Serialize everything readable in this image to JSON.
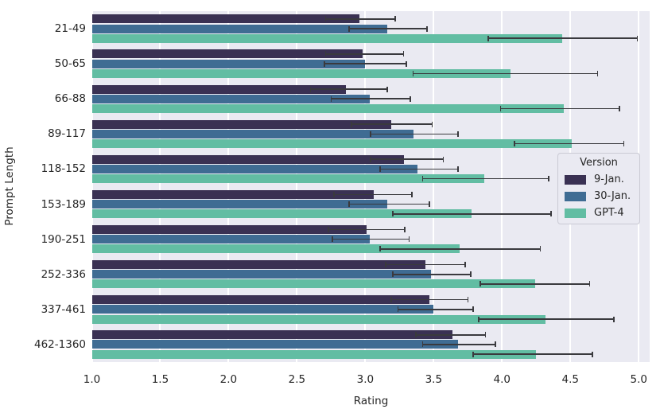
{
  "figure": {
    "background": "#ffffff",
    "plot_background": "#eaeaf2",
    "grid_color": "#ffffff",
    "error_bar_color": "#3a3a3e",
    "text_color": "#262626"
  },
  "chart_data": {
    "type": "bar",
    "orientation": "horizontal",
    "title": "",
    "xlabel": "Rating",
    "ylabel": "Prompt Length",
    "xlim": [
      1.0,
      5.08
    ],
    "xticks": [
      1.0,
      1.5,
      2.0,
      2.5,
      3.0,
      3.5,
      4.0,
      4.5,
      5.0
    ],
    "grid": true,
    "legend": {
      "title": "Version",
      "position": "center right"
    },
    "categories": [
      "21-49",
      "50-65",
      "66-88",
      "89-117",
      "118-152",
      "153-189",
      "190-251",
      "252-336",
      "337-461",
      "462-1360"
    ],
    "series": [
      {
        "name": "9-Jan.",
        "color": "#3a3153",
        "values": [
          2.96,
          2.98,
          2.86,
          3.19,
          3.28,
          3.06,
          3.01,
          3.44,
          3.47,
          3.64
        ],
        "err_low": [
          2.71,
          2.71,
          2.6,
          2.9,
          3.04,
          2.77,
          2.73,
          3.15,
          3.19,
          3.37
        ],
        "err_high": [
          3.22,
          3.28,
          3.16,
          3.49,
          3.57,
          3.34,
          3.29,
          3.73,
          3.75,
          3.88
        ]
      },
      {
        "name": "30-Jan.",
        "color": "#3f6c93",
        "values": [
          3.16,
          3.0,
          3.03,
          3.35,
          3.38,
          3.16,
          3.03,
          3.48,
          3.5,
          3.68
        ],
        "err_low": [
          2.88,
          2.7,
          2.75,
          3.04,
          3.11,
          2.88,
          2.76,
          3.2,
          3.24,
          3.42
        ],
        "err_high": [
          3.45,
          3.3,
          3.33,
          3.68,
          3.68,
          3.47,
          3.32,
          3.77,
          3.79,
          3.95
        ]
      },
      {
        "name": "GPT-4",
        "color": "#62bda3",
        "values": [
          4.44,
          4.06,
          4.45,
          4.51,
          3.87,
          3.78,
          3.69,
          4.24,
          4.32,
          4.25
        ],
        "err_low": [
          3.9,
          3.35,
          3.99,
          4.09,
          3.42,
          3.2,
          3.11,
          3.84,
          3.83,
          3.79
        ],
        "err_high": [
          4.99,
          4.7,
          4.86,
          4.89,
          4.34,
          4.36,
          4.28,
          4.64,
          4.82,
          4.66
        ]
      }
    ]
  }
}
